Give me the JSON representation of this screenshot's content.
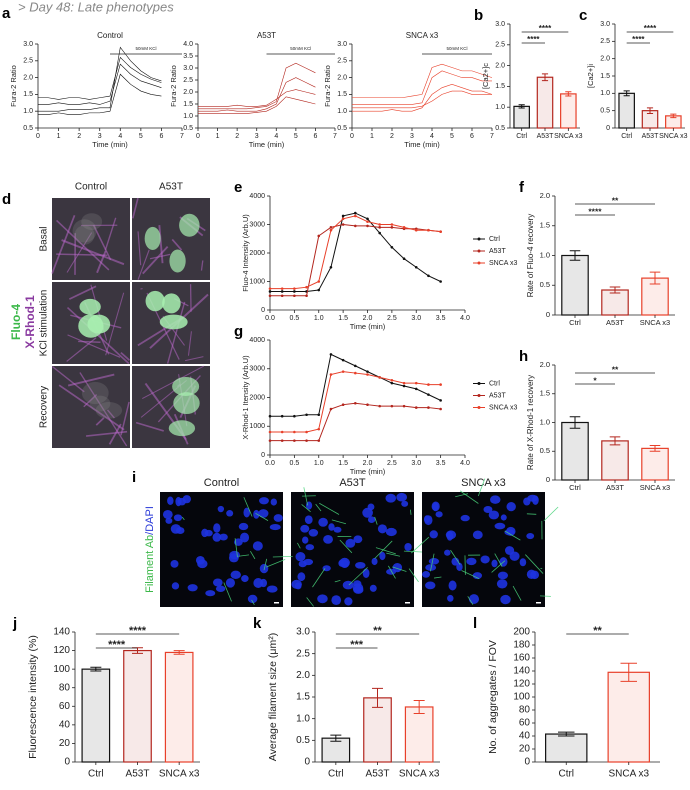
{
  "header": "> Day 48: Late phenotypes",
  "chart_data": [
    {
      "type": "line",
      "panel": "a",
      "title": "Control",
      "xlabel": "Time (min)",
      "ylabel": "Fura-2 Ratio",
      "x": [
        0,
        0.5,
        1,
        1.5,
        2,
        2.5,
        3,
        3.5,
        4,
        4.5,
        5,
        5.5,
        6
      ],
      "series": [
        {
          "color": "#111111",
          "values": [
            1.0,
            1.0,
            1.0,
            1.05,
            1.05,
            1.05,
            1.1,
            1.1,
            2.9,
            2.5,
            2.2,
            2.0,
            1.9
          ]
        },
        {
          "color": "#111111",
          "values": [
            1.2,
            1.2,
            1.25,
            1.2,
            1.2,
            1.25,
            1.2,
            1.3,
            2.4,
            2.1,
            1.9,
            1.8,
            1.7
          ]
        },
        {
          "color": "#111111",
          "values": [
            0.9,
            0.9,
            0.95,
            0.9,
            0.9,
            0.95,
            0.95,
            1.0,
            2.1,
            1.8,
            1.6,
            1.5,
            1.45
          ]
        },
        {
          "color": "#111111",
          "values": [
            1.4,
            1.4,
            1.35,
            1.4,
            1.4,
            1.35,
            1.4,
            1.45,
            2.6,
            2.3,
            2.1,
            1.95,
            1.85
          ]
        }
      ],
      "annotation": {
        "label": "50mM KCl",
        "from": 3.5,
        "to": 7
      },
      "xlim": [
        0,
        7
      ],
      "xticks": [
        0,
        1,
        2,
        3,
        4,
        5,
        6,
        7
      ],
      "ylim": [
        0.5,
        3.0
      ],
      "yticks": [
        0.5,
        {
          "value": 1,
          "label": "1.0"
        },
        1.5,
        {
          "value": 2,
          "label": "2.0"
        },
        2.5,
        {
          "value": 3,
          "label": "3.0"
        }
      ]
    },
    {
      "type": "line",
      "title": "A53T",
      "xlabel": "Time (min)",
      "ylabel": "Fura-2 Ratio",
      "x": [
        0,
        0.5,
        1,
        1.5,
        2,
        2.5,
        3,
        3.5,
        4,
        4.5,
        5,
        5.5,
        6
      ],
      "series": [
        {
          "color": "#b3261e",
          "values": [
            1.3,
            1.3,
            1.3,
            1.3,
            1.3,
            1.3,
            1.35,
            1.4,
            1.6,
            3.0,
            3.2,
            3.0,
            2.8
          ]
        },
        {
          "color": "#b3261e",
          "values": [
            1.2,
            1.2,
            1.2,
            1.25,
            1.2,
            1.2,
            1.2,
            1.3,
            1.5,
            2.4,
            2.6,
            2.4,
            2.2
          ]
        },
        {
          "color": "#b3261e",
          "values": [
            1.4,
            1.4,
            1.4,
            1.4,
            1.45,
            1.4,
            1.4,
            1.45,
            1.7,
            2.0,
            2.1,
            2.0,
            1.9
          ]
        },
        {
          "color": "#b3261e",
          "values": [
            1.1,
            1.1,
            1.1,
            1.1,
            1.1,
            1.1,
            1.15,
            1.2,
            1.4,
            1.8,
            1.7,
            1.6,
            1.5
          ]
        }
      ],
      "annotation": {
        "label": "50mM KCl",
        "from": 3.5,
        "to": 7
      },
      "xlim": [
        0,
        7
      ],
      "xticks": [
        0,
        1,
        2,
        3,
        4,
        5,
        6,
        7
      ],
      "ylim": [
        0.5,
        4.0
      ],
      "yticks": [
        0.5,
        {
          "value": 1,
          "label": "1.0"
        },
        1.5,
        {
          "value": 2,
          "label": "2.0"
        },
        2.5,
        {
          "value": 3,
          "label": "3.0"
        },
        3.5,
        {
          "value": 4,
          "label": "4.0"
        }
      ]
    },
    {
      "type": "line",
      "title": "SNCA x3",
      "xlabel": "Time (min)",
      "ylabel": "Fura-2 Ratio",
      "x": [
        0,
        0.5,
        1,
        1.5,
        2,
        2.5,
        3,
        3.5,
        4,
        4.5,
        5,
        5.5,
        6,
        6.5,
        7
      ],
      "series": [
        {
          "color": "#e8402a",
          "values": [
            1.2,
            1.2,
            1.2,
            1.2,
            1.2,
            1.2,
            1.2,
            1.25,
            2.0,
            2.2,
            2.1,
            2.0,
            2.0,
            1.9,
            1.9
          ]
        },
        {
          "color": "#e8402a",
          "values": [
            1.0,
            1.0,
            1.0,
            1.0,
            1.05,
            1.0,
            1.0,
            1.1,
            1.5,
            1.7,
            1.8,
            1.7,
            1.6,
            1.6,
            1.5
          ]
        },
        {
          "color": "#e8402a",
          "values": [
            1.4,
            1.4,
            1.4,
            1.4,
            1.4,
            1.4,
            1.45,
            1.5,
            2.3,
            2.4,
            2.3,
            2.2,
            2.2,
            2.1,
            2.0
          ]
        },
        {
          "color": "#e8402a",
          "values": [
            1.1,
            1.1,
            1.1,
            1.1,
            1.1,
            1.1,
            1.1,
            1.15,
            1.3,
            1.5,
            1.6,
            1.6,
            1.5,
            1.5,
            1.5
          ]
        }
      ],
      "annotation": {
        "label": "50mM KCl",
        "from": 3.5,
        "to": 7
      },
      "xlim": [
        0,
        7
      ],
      "xticks": [
        0,
        1,
        2,
        3,
        4,
        5,
        6,
        7
      ],
      "ylim": [
        0.5,
        3.0
      ],
      "yticks": [
        0.5,
        {
          "value": 1,
          "label": "1.0"
        },
        1.5,
        {
          "value": 2,
          "label": "2.0"
        },
        2.5,
        {
          "value": 3,
          "label": "3.0"
        }
      ]
    },
    {
      "type": "bar",
      "panel": "b",
      "ylabel": "[Ca2+]c",
      "categories": [
        "Ctrl",
        "A53T",
        "SNCA x3"
      ],
      "values": [
        1.02,
        1.72,
        1.32
      ],
      "errors": [
        0.04,
        0.08,
        0.05
      ],
      "colors": [
        "#111111",
        "#b3261e",
        "#e8402a"
      ],
      "significance": [
        "****",
        "****"
      ],
      "ylim": [
        0.5,
        3.0
      ],
      "yticks": [
        0.5,
        {
          "value": 1,
          "label": "1.0"
        },
        1.5,
        {
          "value": 2,
          "label": "2.0"
        },
        2.5,
        {
          "value": 3,
          "label": "3.0"
        }
      ]
    },
    {
      "type": "bar",
      "panel": "c",
      "ylabel": "[Ca2+]i",
      "categories": [
        "Ctrl",
        "A53T",
        "SNCA x3"
      ],
      "values": [
        1.0,
        0.5,
        0.35
      ],
      "errors": [
        0.07,
        0.08,
        0.05
      ],
      "colors": [
        "#111111",
        "#b3261e",
        "#e8402a"
      ],
      "significance": [
        "****",
        "****"
      ],
      "ylim": [
        0,
        3.0
      ],
      "yticks": [
        0,
        0.5,
        {
          "value": 1,
          "label": "1.0"
        },
        1.5,
        {
          "value": 2,
          "label": "2.0"
        },
        2.5,
        {
          "value": 3,
          "label": "3.0"
        }
      ]
    },
    {
      "type": "line",
      "panel": "e",
      "markers": true,
      "legend": "right",
      "xlabel": "Time (min)",
      "ylabel": "Fluo-4 Intensity (Arb.U)",
      "x": [
        0,
        0.25,
        0.5,
        0.75,
        1,
        1.25,
        1.5,
        1.75,
        2,
        2.25,
        2.5,
        2.75,
        3,
        3.25,
        3.5
      ],
      "series": [
        {
          "name": "Ctrl",
          "color": "#111111",
          "values": [
            650,
            650,
            650,
            650,
            700,
            1500,
            3300,
            3400,
            3200,
            2700,
            2200,
            1800,
            1500,
            1200,
            1000
          ]
        },
        {
          "name": "A53T",
          "color": "#b3261e",
          "values": [
            500,
            500,
            500,
            500,
            2600,
            2900,
            3000,
            2950,
            2950,
            2900,
            2900,
            2850,
            2850,
            2800,
            2750
          ]
        },
        {
          "name": "SNCA x3",
          "color": "#e8402a",
          "values": [
            750,
            750,
            750,
            800,
            1000,
            2800,
            3200,
            3300,
            3100,
            3000,
            3000,
            2900,
            2800,
            2800,
            2750
          ]
        }
      ],
      "xlim": [
        0,
        4
      ],
      "xticks": [
        {
          "value": 0,
          "label": "0.0"
        },
        0.5,
        {
          "value": 1,
          "label": "1.0"
        },
        1.5,
        {
          "value": 2,
          "label": "2.0"
        },
        2.5,
        {
          "value": 3,
          "label": "3.0"
        },
        3.5,
        {
          "value": 4,
          "label": "4.0"
        }
      ],
      "ylim": [
        0,
        4000
      ],
      "yticks": [
        0,
        1000,
        2000,
        3000,
        4000
      ]
    },
    {
      "type": "line",
      "panel": "g",
      "markers": true,
      "legend": "right",
      "xlabel": "Time (min)",
      "ylabel": "X-Rhod-1 Itensity (Arb.U)",
      "x": [
        0,
        0.25,
        0.5,
        0.75,
        1,
        1.25,
        1.5,
        1.75,
        2,
        2.25,
        2.5,
        2.75,
        3,
        3.25,
        3.5
      ],
      "series": [
        {
          "name": "Ctrl",
          "color": "#111111",
          "values": [
            1350,
            1350,
            1350,
            1400,
            1400,
            3500,
            3300,
            3100,
            2900,
            2700,
            2500,
            2400,
            2300,
            2100,
            1900
          ]
        },
        {
          "name": "A53T",
          "color": "#b3261e",
          "values": [
            500,
            500,
            500,
            500,
            500,
            1600,
            1750,
            1800,
            1750,
            1700,
            1700,
            1700,
            1650,
            1650,
            1600
          ]
        },
        {
          "name": "SNCA x3",
          "color": "#e8402a",
          "values": [
            800,
            800,
            800,
            800,
            900,
            2800,
            2900,
            2850,
            2800,
            2700,
            2600,
            2500,
            2500,
            2450,
            2450
          ]
        }
      ],
      "xlim": [
        0,
        4
      ],
      "xticks": [
        {
          "value": 0,
          "label": "0.0"
        },
        0.5,
        {
          "value": 1,
          "label": "1.0"
        },
        1.5,
        {
          "value": 2,
          "label": "2.0"
        },
        2.5,
        {
          "value": 3,
          "label": "3.0"
        },
        3.5,
        {
          "value": 4,
          "label": "4.0"
        }
      ],
      "ylim": [
        0,
        4000
      ],
      "yticks": [
        0,
        1000,
        2000,
        3000,
        4000
      ]
    },
    {
      "type": "bar",
      "panel": "f",
      "ylabel": "Rate of Fluo-4 recovery",
      "categories": [
        "Ctrl",
        "A53T",
        "SNCA x3"
      ],
      "values": [
        1.0,
        0.42,
        0.62
      ],
      "errors": [
        0.08,
        0.05,
        0.1
      ],
      "colors": [
        "#111111",
        "#b3261e",
        "#e8402a"
      ],
      "significance": [
        "****",
        "**"
      ],
      "ylim": [
        0,
        2.0
      ],
      "yticks": [
        0,
        0.5,
        {
          "value": 1,
          "label": "1.0"
        },
        1.5,
        {
          "value": 2,
          "label": "2.0"
        }
      ]
    },
    {
      "type": "bar",
      "panel": "h",
      "ylabel": "Rate of X-Rhod-1 recovery",
      "categories": [
        "Ctrl",
        "A53T",
        "SNCA x3"
      ],
      "values": [
        1.0,
        0.68,
        0.55
      ],
      "errors": [
        0.1,
        0.07,
        0.05
      ],
      "colors": [
        "#111111",
        "#b3261e",
        "#e8402a"
      ],
      "significance": [
        "*",
        "**"
      ],
      "ylim": [
        0,
        2.0
      ],
      "yticks": [
        0,
        0.5,
        {
          "value": 1,
          "label": "1.0"
        },
        1.5,
        {
          "value": 2,
          "label": "2.0"
        }
      ]
    },
    {
      "type": "bar",
      "panel": "j",
      "ylabel": "Fluorescence intensity (%)",
      "categories": [
        "Ctrl",
        "A53T",
        "SNCA x3"
      ],
      "values": [
        100,
        120,
        118
      ],
      "errors": [
        2,
        3,
        2
      ],
      "colors": [
        "#111111",
        "#b3261e",
        "#e8402a"
      ],
      "significance": [
        "****",
        "****"
      ],
      "ylim": [
        0,
        140
      ],
      "yticks": [
        0,
        20,
        40,
        60,
        80,
        100,
        120,
        140
      ]
    },
    {
      "type": "bar",
      "panel": "k",
      "ylabel": "Average filament size (μm²)",
      "categories": [
        "Ctrl",
        "A53T",
        "SNCA x3"
      ],
      "values": [
        0.55,
        1.48,
        1.27
      ],
      "errors": [
        0.07,
        0.22,
        0.15
      ],
      "colors": [
        "#111111",
        "#b3261e",
        "#e8402a"
      ],
      "significance": [
        "***",
        "**"
      ],
      "ylim": [
        0,
        3.0
      ],
      "yticks": [
        0,
        0.5,
        {
          "value": 1,
          "label": "1.0"
        },
        1.5,
        {
          "value": 2,
          "label": "2.0"
        },
        2.5,
        {
          "value": 3,
          "label": "3.0"
        }
      ]
    },
    {
      "type": "bar",
      "panel": "l",
      "ylabel": "No. of aggregates / FOV",
      "categories": [
        "Ctrl",
        "SNCA x3"
      ],
      "values": [
        43,
        138
      ],
      "errors": [
        3,
        14
      ],
      "colors": [
        "#111111",
        "#e8402a"
      ],
      "significance": [
        "**"
      ],
      "ylim": [
        0,
        200
      ],
      "yticks": [
        0,
        20,
        40,
        60,
        80,
        100,
        120,
        140,
        160,
        180,
        200
      ]
    }
  ],
  "images": [
    {
      "panel": "d",
      "columns": [
        "Control",
        "A53T"
      ],
      "rows": [
        "Basal",
        "KCl stimulation",
        "Recovery"
      ],
      "side_label": [
        "Fluo-4",
        "X-Rhod-1"
      ]
    },
    {
      "panel": "i",
      "columns": [
        "Control",
        "A53T",
        "SNCA x3"
      ],
      "side_label": [
        "Filament Ab",
        "/DAPI"
      ]
    }
  ]
}
